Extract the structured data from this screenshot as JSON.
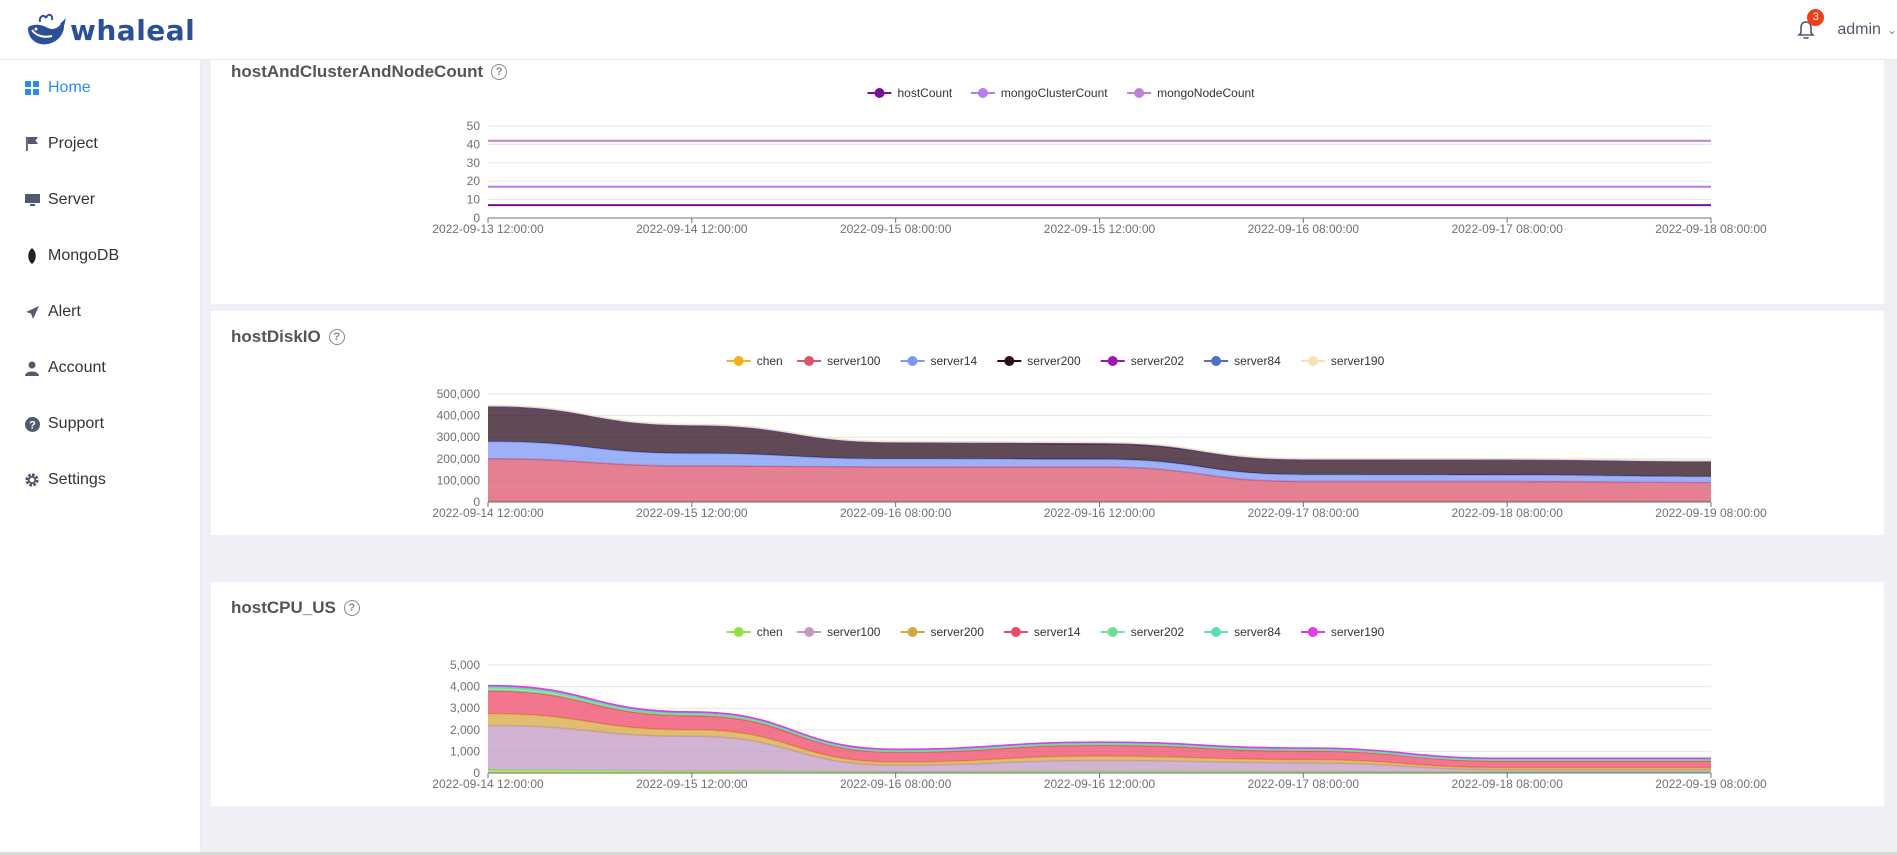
{
  "app": {
    "logo_text": "whaleal"
  },
  "header": {
    "notification_count": "3",
    "username": "admin"
  },
  "sidebar": {
    "items": [
      {
        "label": "Home",
        "icon": "grid-icon",
        "active": true
      },
      {
        "label": "Project",
        "icon": "flag-icon"
      },
      {
        "label": "Server",
        "icon": "monitor-icon"
      },
      {
        "label": "MongoDB",
        "icon": "leaf-icon"
      },
      {
        "label": "Alert",
        "icon": "paper-plane-icon"
      },
      {
        "label": "Account",
        "icon": "user-icon"
      },
      {
        "label": "Support",
        "icon": "question-circle-icon"
      },
      {
        "label": "Settings",
        "icon": "gear-icon"
      }
    ]
  },
  "chart_data": [
    {
      "type": "line",
      "title": "hostAndClusterAndNodeCount",
      "x": [
        "2022-09-13 12:00:00",
        "2022-09-14 12:00:00",
        "2022-09-15 08:00:00",
        "2022-09-15 12:00:00",
        "2022-09-16 08:00:00",
        "2022-09-17 08:00:00",
        "2022-09-18 08:00:00"
      ],
      "ylim": [
        0,
        50
      ],
      "yticks": [
        "0",
        "10",
        "20",
        "30",
        "40",
        "50"
      ],
      "legend_position": "top-center",
      "grid": true,
      "series": [
        {
          "name": "hostCount",
          "color": "#7b0f99",
          "values": [
            7,
            7,
            7,
            7,
            7,
            7,
            7
          ]
        },
        {
          "name": "mongoClusterCount",
          "color": "#b57cf0",
          "values": [
            17,
            17,
            17,
            17,
            17,
            17,
            17
          ]
        },
        {
          "name": "mongoNodeCount",
          "color": "#c17fd6",
          "values": [
            42,
            42,
            42,
            42,
            42,
            42,
            42
          ]
        }
      ]
    },
    {
      "type": "area",
      "stacked": true,
      "title": "hostDiskIO",
      "x": [
        "2022-09-14 12:00:00",
        "2022-09-15 12:00:00",
        "2022-09-16 08:00:00",
        "2022-09-16 12:00:00",
        "2022-09-17 08:00:00",
        "2022-09-18 08:00:00",
        "2022-09-19 08:00:00"
      ],
      "ylim": [
        0,
        500000
      ],
      "yticks": [
        "0",
        "100,000",
        "200,000",
        "300,000",
        "400,000",
        "500,000"
      ],
      "legend_position": "top-center",
      "grid": true,
      "series": [
        {
          "name": "chen",
          "color": "#f0b21e",
          "values": [
            2000,
            2000,
            2000,
            2000,
            2000,
            2000,
            2000
          ]
        },
        {
          "name": "server100",
          "color": "#d9576e",
          "values": [
            198000,
            165000,
            160000,
            160000,
            93000,
            93000,
            88000
          ]
        },
        {
          "name": "server14",
          "color": "#7c97f5",
          "values": [
            80000,
            58000,
            38000,
            36000,
            32000,
            30000,
            28000
          ]
        },
        {
          "name": "server200",
          "color": "#2a0d1e",
          "values": [
            163000,
            130000,
            76000,
            72000,
            70000,
            71000,
            70000
          ]
        },
        {
          "name": "server202",
          "color": "#9b17b0",
          "values": [
            0,
            0,
            0,
            2000,
            0,
            0,
            0
          ]
        },
        {
          "name": "server84",
          "color": "#4f71c4",
          "values": [
            1000,
            1000,
            1000,
            1000,
            1000,
            1000,
            1000
          ]
        },
        {
          "name": "server190",
          "color": "#f7e1b5",
          "values": [
            3000,
            3000,
            3000,
            3000,
            3000,
            3000,
            3000
          ]
        }
      ]
    },
    {
      "type": "area",
      "stacked": true,
      "title": "hostCPU_US",
      "x": [
        "2022-09-14 12:00:00",
        "2022-09-15 12:00:00",
        "2022-09-16 08:00:00",
        "2022-09-16 12:00:00",
        "2022-09-17 08:00:00",
        "2022-09-18 08:00:00",
        "2022-09-19 08:00:00"
      ],
      "ylim": [
        0,
        5000
      ],
      "yticks": [
        "0",
        "1,000",
        "2,000",
        "3,000",
        "4,000",
        "5,000"
      ],
      "legend_position": "top-center",
      "grid": true,
      "series": [
        {
          "name": "chen",
          "color": "#91e04a",
          "values": [
            150,
            100,
            60,
            80,
            70,
            50,
            50
          ]
        },
        {
          "name": "server100",
          "color": "#c29bc4",
          "values": [
            2050,
            1600,
            300,
            500,
            400,
            100,
            100
          ]
        },
        {
          "name": "server200",
          "color": "#d5a740",
          "values": [
            550,
            300,
            150,
            200,
            150,
            100,
            100
          ]
        },
        {
          "name": "server14",
          "color": "#ee4a68",
          "values": [
            1050,
            650,
            450,
            500,
            400,
            300,
            300
          ]
        },
        {
          "name": "server202",
          "color": "#6fe08f",
          "values": [
            150,
            80,
            60,
            70,
            60,
            50,
            50
          ]
        },
        {
          "name": "server84",
          "color": "#57e0b8",
          "values": [
            50,
            50,
            40,
            40,
            40,
            40,
            40
          ]
        },
        {
          "name": "server190",
          "color": "#e03be8",
          "values": [
            50,
            50,
            40,
            40,
            40,
            40,
            40
          ]
        }
      ]
    }
  ]
}
